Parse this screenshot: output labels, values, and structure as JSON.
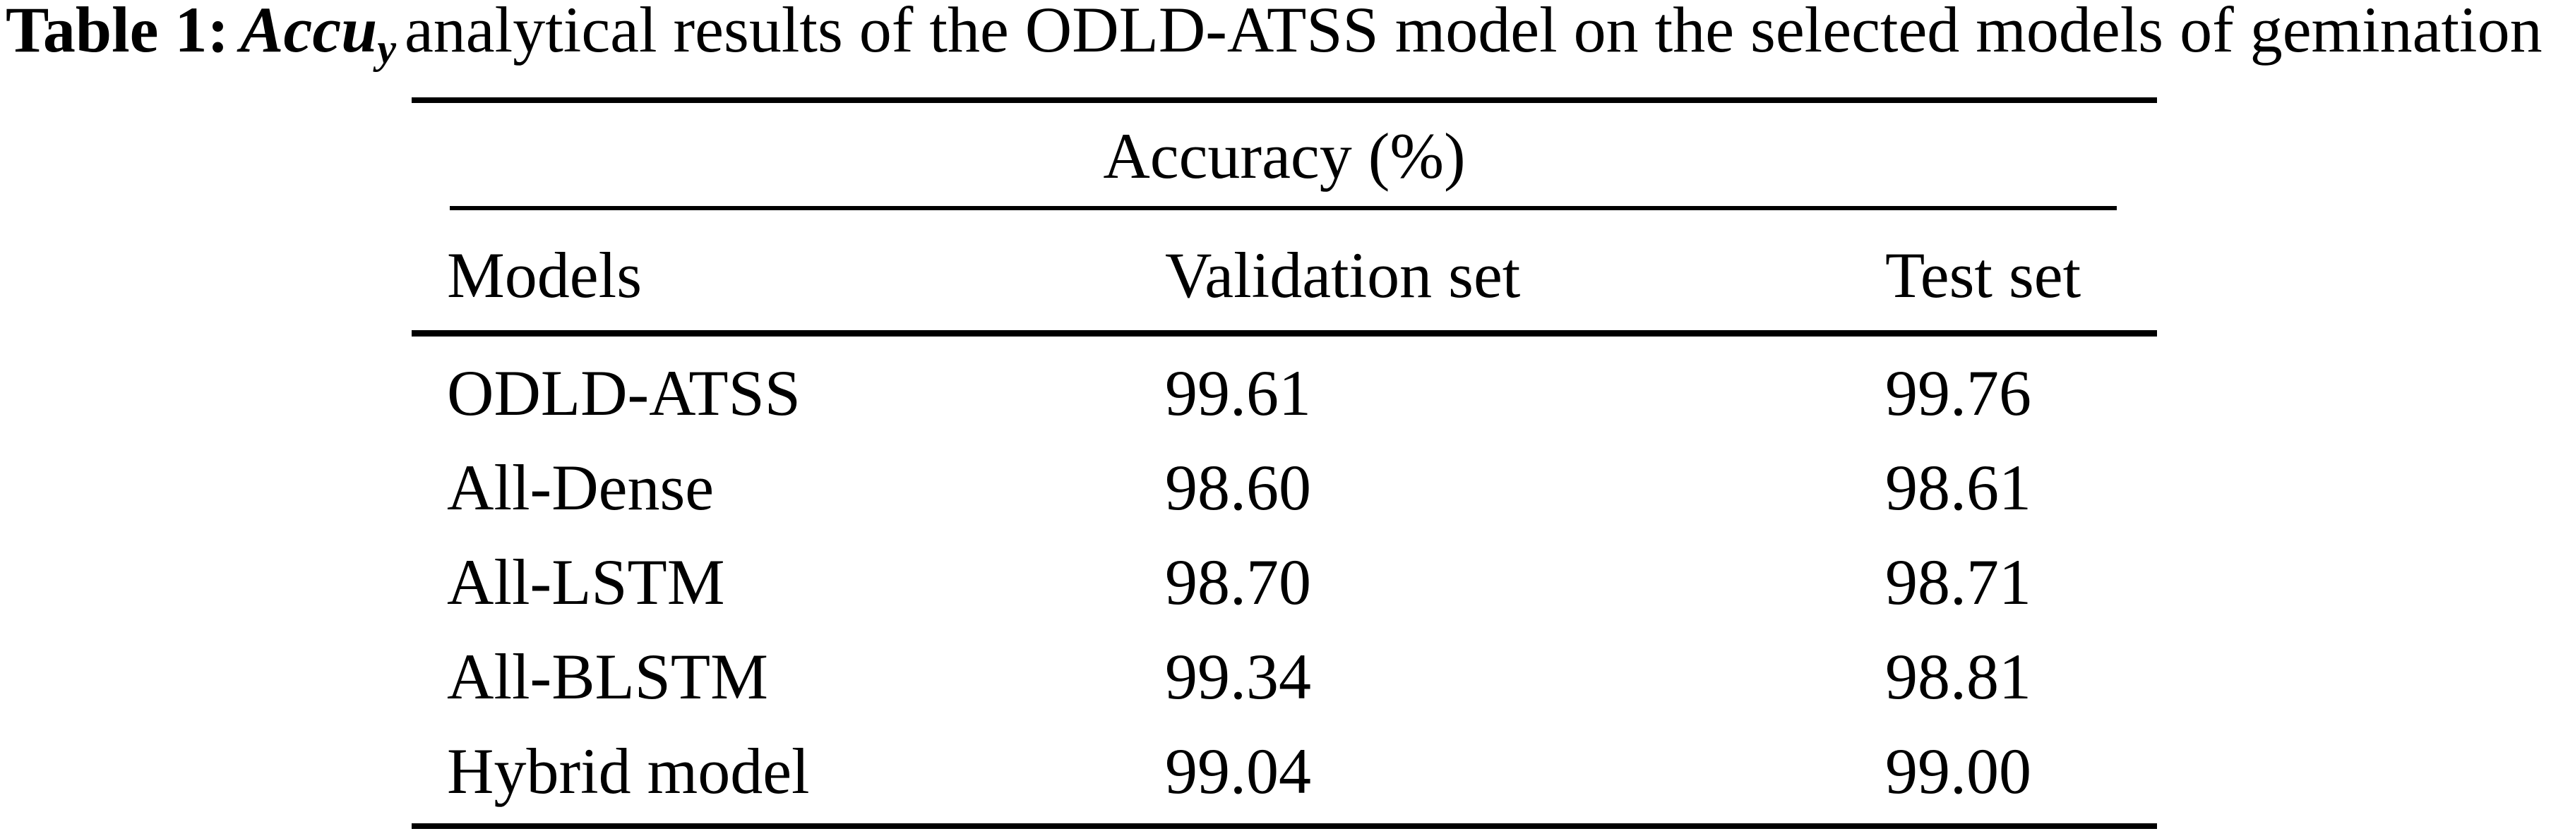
{
  "caption": {
    "label": "Table 1:",
    "metric": "Accu",
    "metric_subscript": "y",
    "text": "analytical results of the ODLD-ATSS model on the selected models of gemination"
  },
  "table": {
    "group_header": "Accuracy (%)",
    "columns": [
      "Models",
      "Validation set",
      "Test set"
    ],
    "rows": [
      {
        "model": "ODLD-ATSS",
        "validation": "99.61",
        "test": "99.76"
      },
      {
        "model": "All-Dense",
        "validation": "98.60",
        "test": "98.61"
      },
      {
        "model": "All-LSTM",
        "validation": "98.70",
        "test": "98.71"
      },
      {
        "model": "All-BLSTM",
        "validation": "99.34",
        "test": "98.81"
      },
      {
        "model": "Hybrid model",
        "validation": "99.04",
        "test": "99.00"
      }
    ]
  },
  "colors": {
    "text": "#000000",
    "background": "#ffffff",
    "rule": "#000000"
  },
  "chart_data": {
    "type": "table",
    "title": "Table 1: Accuy analytical results of the ODLD-ATSS model on the selected models of gemination",
    "group_header": "Accuracy (%)",
    "columns": [
      "Models",
      "Validation set",
      "Test set"
    ],
    "rows": [
      [
        "ODLD-ATSS",
        99.61,
        99.76
      ],
      [
        "All-Dense",
        98.6,
        98.61
      ],
      [
        "All-LSTM",
        98.7,
        98.71
      ],
      [
        "All-BLSTM",
        99.34,
        98.81
      ],
      [
        "Hybrid model",
        99.04,
        99.0
      ]
    ]
  }
}
